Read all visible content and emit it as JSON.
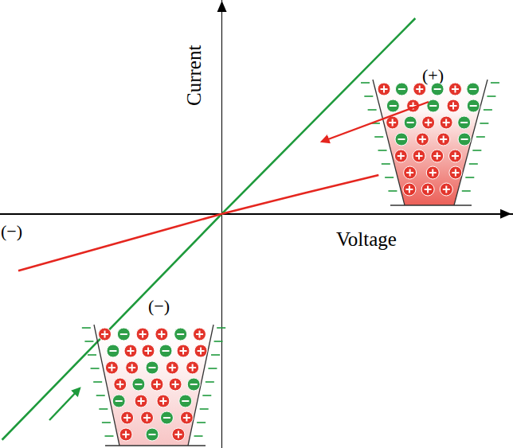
{
  "chart_data": {
    "type": "line",
    "x_label": "Voltage",
    "y_label": "Current",
    "xlim": [
      -1.09,
      1.43
    ],
    "ylim": [
      -1.15,
      1.05
    ],
    "xticks": [],
    "yticks": [],
    "tick_labels": false,
    "grid": false,
    "series": [
      {
        "color": "#1e9a3c",
        "x": [
          -1.08,
          0,
          0.95
        ],
        "values": [
          -1.11,
          0,
          0.96
        ]
      },
      {
        "color": "#e5261f",
        "x": [
          -1.0,
          -0.5,
          0,
          0.4,
          0.77
        ],
        "values": [
          -0.28,
          -0.14,
          0,
          0.1,
          0.19
        ]
      }
    ],
    "annotations": [
      "(+)",
      "(−)",
      "(−)"
    ]
  }
}
